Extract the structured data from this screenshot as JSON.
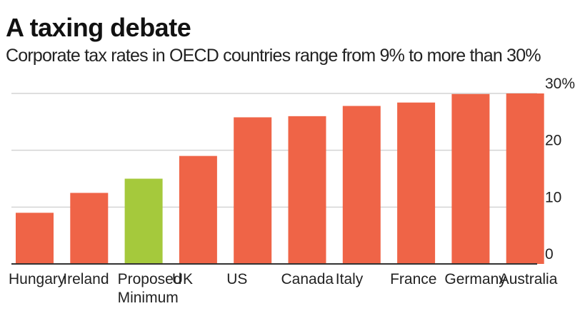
{
  "header": {
    "title": "A taxing debate",
    "subtitle": "Corporate tax rates in OECD countries range from 9% to more than 30%"
  },
  "colors": {
    "bar": "#ef6447",
    "highlight": "#a5c93c",
    "grid": "#d4d4d4",
    "axis": "#333333"
  },
  "chart_data": {
    "type": "bar",
    "title": "A taxing debate",
    "subtitle": "Corporate tax rates in OECD countries range from 9% to more than 30%",
    "categories": [
      "Hungary",
      "Ireland",
      "Proposed Minimum",
      "UK",
      "US",
      "Canada",
      "Italy",
      "France",
      "Germany",
      "Australia"
    ],
    "category_lines": [
      [
        "Hungary"
      ],
      [
        "Ireland"
      ],
      [
        "Proposed",
        "Minimum"
      ],
      [
        "UK"
      ],
      [
        "US"
      ],
      [
        "Canada"
      ],
      [
        "Italy"
      ],
      [
        "France"
      ],
      [
        "Germany"
      ],
      [
        "Australia"
      ]
    ],
    "values": [
      9,
      12.5,
      15,
      19,
      25.8,
      26,
      27.8,
      28.4,
      29.9,
      30
    ],
    "highlight_category": "Proposed Minimum",
    "yticks": [
      0,
      10,
      20,
      30
    ],
    "ytick_labels": [
      "0",
      "10",
      "20",
      "30%"
    ],
    "ylim": [
      0,
      30
    ],
    "xlabel": "",
    "ylabel": "",
    "grid": true,
    "y_axis_side": "right"
  }
}
